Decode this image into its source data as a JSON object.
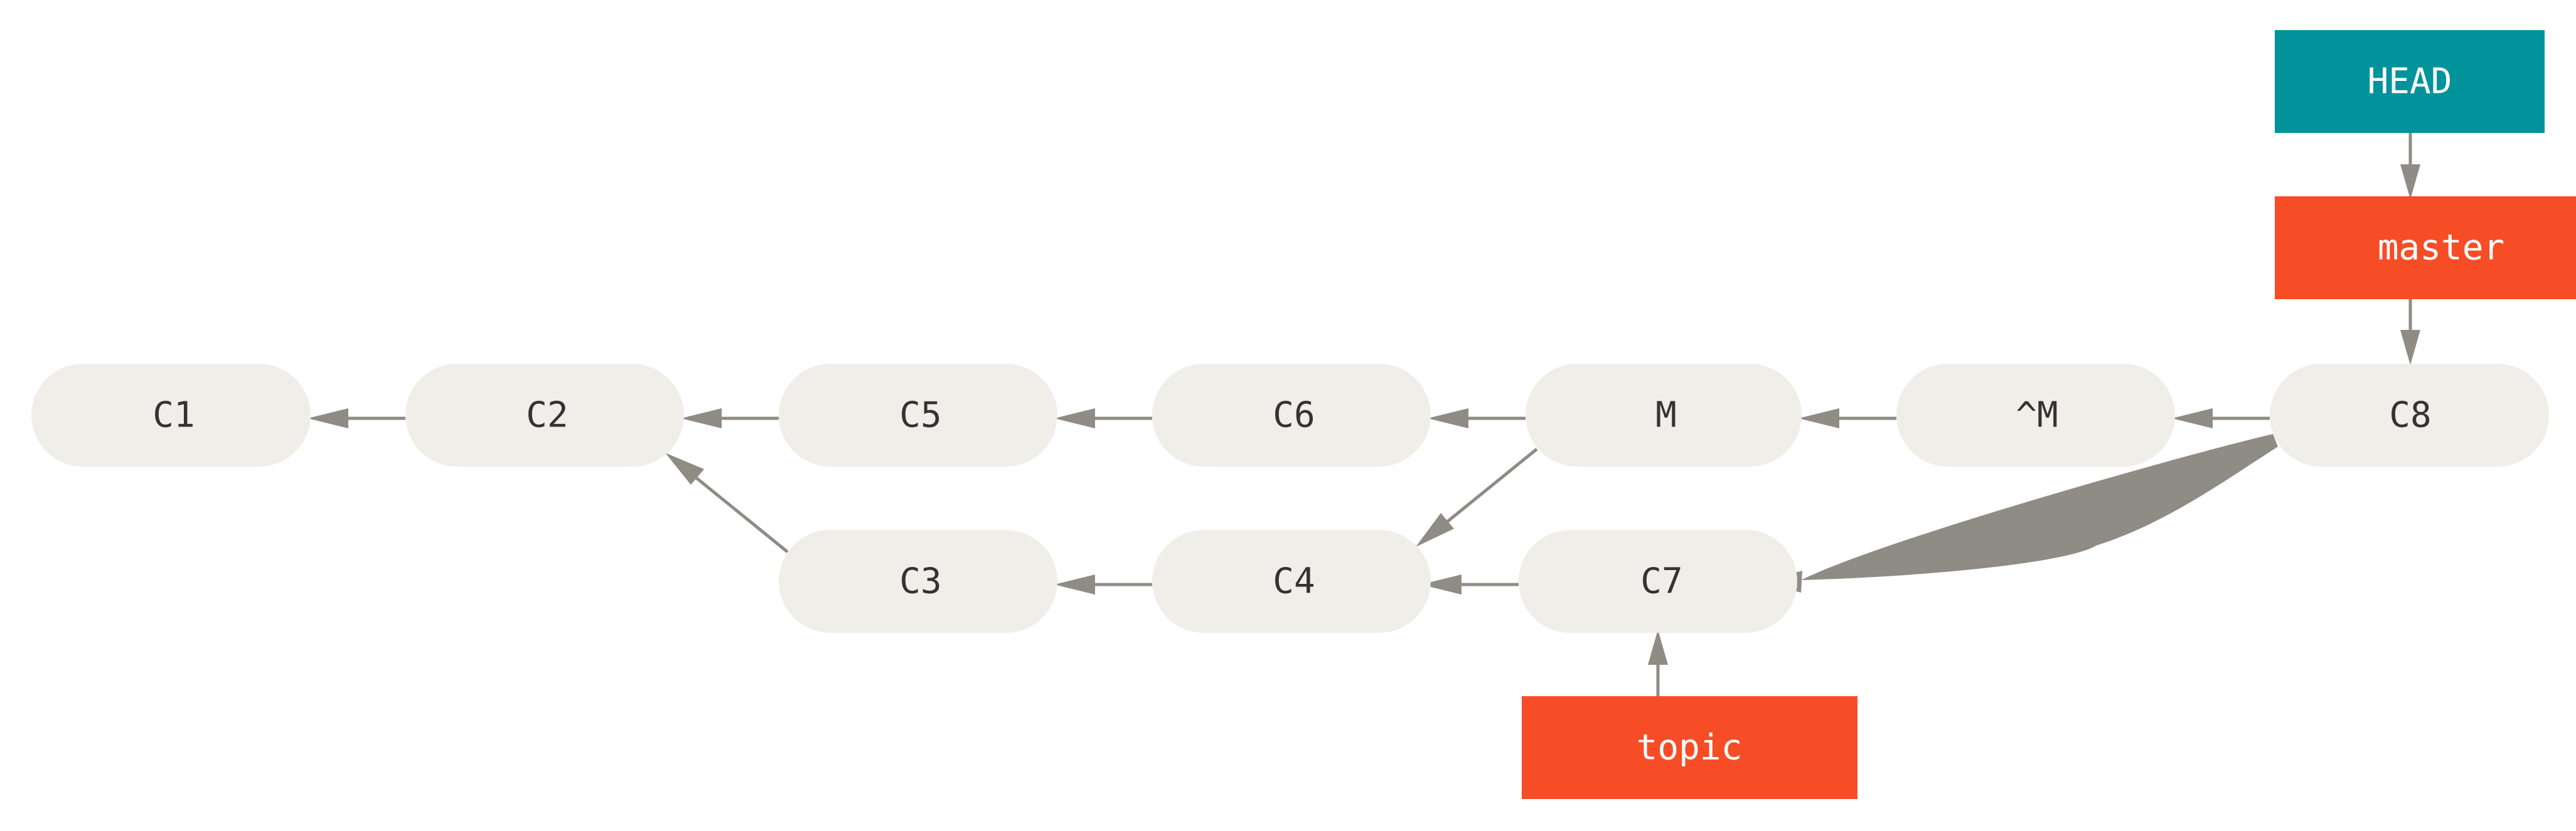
{
  "commits": [
    {
      "id": "c1",
      "label": "C1"
    },
    {
      "id": "c2",
      "label": "C2"
    },
    {
      "id": "c5",
      "label": "C5"
    },
    {
      "id": "c6",
      "label": "C6"
    },
    {
      "id": "m",
      "label": "M"
    },
    {
      "id": "revert-m",
      "label": "^M"
    },
    {
      "id": "c8",
      "label": "C8"
    },
    {
      "id": "c3",
      "label": "C3"
    },
    {
      "id": "c4",
      "label": "C4"
    },
    {
      "id": "c7",
      "label": "C7"
    }
  ],
  "refs": {
    "head": {
      "label": "HEAD",
      "color": "#00939b"
    },
    "master": {
      "label": "master",
      "color": "#f64d27"
    },
    "topic": {
      "label": "topic",
      "color": "#f64d27"
    }
  },
  "edges": [
    {
      "from": "C2",
      "to": "C1"
    },
    {
      "from": "C5",
      "to": "C2"
    },
    {
      "from": "C6",
      "to": "C5"
    },
    {
      "from": "M",
      "to": "C6"
    },
    {
      "from": "^M",
      "to": "M"
    },
    {
      "from": "C8",
      "to": "^M"
    },
    {
      "from": "C3",
      "to": "C2"
    },
    {
      "from": "C4",
      "to": "C3"
    },
    {
      "from": "C7",
      "to": "C4"
    },
    {
      "from": "M",
      "to": "C4"
    },
    {
      "from": "C8",
      "to": "C7"
    },
    {
      "from": "HEAD",
      "to": "master"
    },
    {
      "from": "master",
      "to": "C8"
    },
    {
      "from": "topic",
      "to": "C7"
    }
  ],
  "colors": {
    "commit_fill": "#efeee8",
    "edge": "#8f8b85",
    "text": "#333333"
  }
}
